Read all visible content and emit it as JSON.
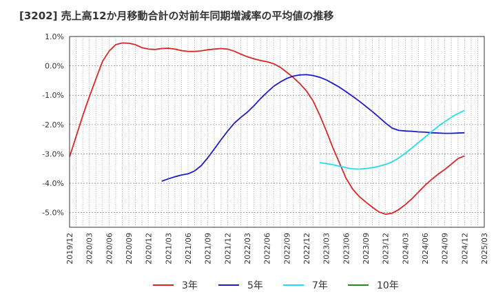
{
  "chart_data": {
    "type": "line",
    "title": "[3202]  売上高12か月移動合計の対前年同期増減率の平均値の推移",
    "xlabel": "",
    "ylabel": "",
    "ylim": [
      -5.5,
      1.0
    ],
    "yticks": [
      1.0,
      0.0,
      -1.0,
      -2.0,
      -3.0,
      -4.0,
      -5.0
    ],
    "ytick_labels": [
      "1.0%",
      "0.0%",
      "-1.0%",
      "-2.0%",
      "-3.0%",
      "-4.0%",
      "-5.0%"
    ],
    "xlim": [
      "2019-12",
      "2025-03"
    ],
    "xtick_labels": [
      "2019/12",
      "2020/03",
      "2020/06",
      "2020/09",
      "2020/12",
      "2021/03",
      "2021/06",
      "2021/09",
      "2021/12",
      "2022/03",
      "2022/06",
      "2022/09",
      "2022/12",
      "2023/03",
      "2023/06",
      "2023/09",
      "2023/12",
      "2024/03",
      "2024/06",
      "2024/09",
      "2024/12",
      "2025/03"
    ],
    "grid": true,
    "legend_position": "bottom",
    "series": [
      {
        "name": "3年",
        "color": "#dd2222",
        "x": [
          "2019-12",
          "2020-01",
          "2020-02",
          "2020-03",
          "2020-04",
          "2020-05",
          "2020-06",
          "2020-07",
          "2020-08",
          "2020-09",
          "2020-10",
          "2020-11",
          "2020-12",
          "2021-01",
          "2021-02",
          "2021-03",
          "2021-04",
          "2021-05",
          "2021-06",
          "2021-07",
          "2021-08",
          "2021-09",
          "2021-10",
          "2021-11",
          "2021-12",
          "2022-01",
          "2022-02",
          "2022-03",
          "2022-04",
          "2022-05",
          "2022-06",
          "2022-07",
          "2022-08",
          "2022-09",
          "2022-10",
          "2022-11",
          "2022-12",
          "2023-01",
          "2023-02",
          "2023-03",
          "2023-04",
          "2023-05",
          "2023-06",
          "2023-07",
          "2023-08",
          "2023-09",
          "2023-10",
          "2023-11",
          "2023-12",
          "2024-01",
          "2024-02",
          "2024-03",
          "2024-04",
          "2024-05",
          "2024-06",
          "2024-07",
          "2024-08",
          "2024-09",
          "2024-10",
          "2024-11",
          "2024-12"
        ],
        "values": [
          -3.1,
          -2.4,
          -1.7,
          -1.05,
          -0.45,
          0.15,
          0.5,
          0.72,
          0.78,
          0.77,
          0.72,
          0.62,
          0.57,
          0.56,
          0.59,
          0.6,
          0.57,
          0.52,
          0.49,
          0.49,
          0.51,
          0.55,
          0.57,
          0.59,
          0.57,
          0.5,
          0.4,
          0.31,
          0.24,
          0.18,
          0.14,
          0.07,
          -0.05,
          -0.22,
          -0.4,
          -0.61,
          -0.86,
          -1.2,
          -1.68,
          -2.22,
          -2.79,
          -3.31,
          -3.83,
          -4.2,
          -4.45,
          -4.64,
          -4.82,
          -4.98,
          -5.06,
          -5.02,
          -4.9,
          -4.73,
          -4.53,
          -4.3,
          -4.07,
          -3.87,
          -3.69,
          -3.53,
          -3.35,
          -3.16,
          -3.07
        ]
      },
      {
        "name": "5年",
        "color": "#1a1acc",
        "x": [
          "2021-02",
          "2021-03",
          "2021-04",
          "2021-05",
          "2021-06",
          "2021-07",
          "2021-08",
          "2021-09",
          "2021-10",
          "2021-11",
          "2021-12",
          "2022-01",
          "2022-02",
          "2022-03",
          "2022-04",
          "2022-05",
          "2022-06",
          "2022-07",
          "2022-08",
          "2022-09",
          "2022-10",
          "2022-11",
          "2022-12",
          "2023-01",
          "2023-02",
          "2023-03",
          "2023-04",
          "2023-05",
          "2023-06",
          "2023-07",
          "2023-08",
          "2023-09",
          "2023-10",
          "2023-11",
          "2023-12",
          "2024-01",
          "2024-02",
          "2024-03",
          "2024-04",
          "2024-05",
          "2024-06",
          "2024-07",
          "2024-08",
          "2024-09",
          "2024-10",
          "2024-11",
          "2024-12"
        ],
        "values": [
          -3.93,
          -3.85,
          -3.78,
          -3.72,
          -3.68,
          -3.58,
          -3.4,
          -3.13,
          -2.83,
          -2.52,
          -2.23,
          -1.96,
          -1.76,
          -1.58,
          -1.36,
          -1.12,
          -0.9,
          -0.7,
          -0.55,
          -0.43,
          -0.35,
          -0.31,
          -0.3,
          -0.33,
          -0.39,
          -0.48,
          -0.6,
          -0.73,
          -0.88,
          -1.04,
          -1.2,
          -1.38,
          -1.56,
          -1.75,
          -1.95,
          -2.12,
          -2.2,
          -2.22,
          -2.23,
          -2.25,
          -2.26,
          -2.28,
          -2.29,
          -2.3,
          -2.3,
          -2.29,
          -2.28
        ]
      },
      {
        "name": "7年",
        "color": "#22ddee",
        "x": [
          "2023-02",
          "2023-03",
          "2023-04",
          "2023-05",
          "2023-06",
          "2023-07",
          "2023-08",
          "2023-09",
          "2023-10",
          "2023-11",
          "2023-12",
          "2024-01",
          "2024-02",
          "2024-03",
          "2024-04",
          "2024-05",
          "2024-06",
          "2024-07",
          "2024-08",
          "2024-09",
          "2024-10",
          "2024-11",
          "2024-12"
        ],
        "values": [
          -3.3,
          -3.33,
          -3.37,
          -3.42,
          -3.47,
          -3.51,
          -3.52,
          -3.5,
          -3.47,
          -3.42,
          -3.36,
          -3.27,
          -3.14,
          -2.98,
          -2.8,
          -2.61,
          -2.43,
          -2.24,
          -2.06,
          -1.9,
          -1.75,
          -1.62,
          -1.52
        ]
      },
      {
        "name": "10年",
        "color": "#228822",
        "x": [],
        "values": []
      }
    ]
  }
}
